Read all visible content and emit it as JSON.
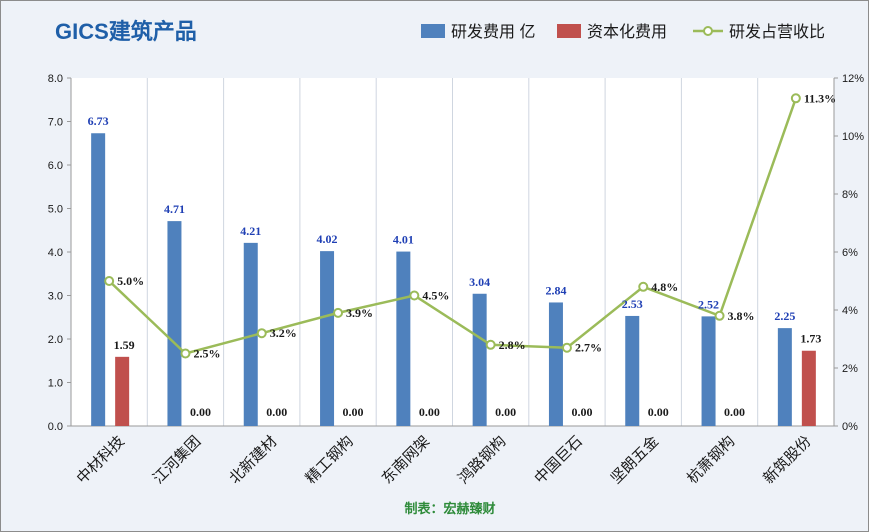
{
  "chart_data": {
    "type": "bar",
    "title": "GICS建筑产品",
    "credit": "制表：宏赫臻财",
    "categories": [
      "中材科技",
      "江河集团",
      "北新建材",
      "精工钢构",
      "东南网架",
      "鸿路钢构",
      "中国巨石",
      "坚朗五金",
      "杭萧钢构",
      "新筑股份"
    ],
    "series": [
      {
        "name": "研发费用 亿",
        "kind": "bar",
        "axis": "left",
        "color": "#4f81bd",
        "values": [
          6.73,
          4.71,
          4.21,
          4.02,
          4.01,
          3.04,
          2.84,
          2.53,
          2.52,
          2.25
        ],
        "labels": [
          "6.73",
          "4.71",
          "4.21",
          "4.02",
          "4.01",
          "3.04",
          "2.84",
          "2.53",
          "2.52",
          "2.25"
        ]
      },
      {
        "name": "资本化费用",
        "kind": "bar",
        "axis": "left",
        "color": "#c0504d",
        "values": [
          1.59,
          0,
          0,
          0,
          0,
          0,
          0,
          0,
          0,
          1.73
        ],
        "labels": [
          "1.59",
          "0.00",
          "0.00",
          "0.00",
          "0.00",
          "0.00",
          "0.00",
          "0.00",
          "0.00",
          "1.73"
        ]
      },
      {
        "name": "研发占营收比",
        "kind": "line",
        "axis": "right",
        "color": "#9bbb59",
        "values": [
          5.0,
          2.5,
          3.2,
          3.9,
          4.5,
          2.8,
          2.7,
          4.8,
          3.8,
          11.3
        ],
        "labels": [
          "5.0%",
          "2.5%",
          "3.2%",
          "3.9%",
          "4.5%",
          "2.8%",
          "2.7%",
          "4.8%",
          "3.8%",
          "11.3%"
        ]
      }
    ],
    "y_left": {
      "min": 0,
      "max": 8,
      "ticks": [
        "0.0",
        "1.0",
        "2.0",
        "3.0",
        "4.0",
        "5.0",
        "6.0",
        "7.0",
        "8.0"
      ]
    },
    "y_right": {
      "min": 0,
      "max": 12,
      "ticks": [
        "0%",
        "2%",
        "4%",
        "6%",
        "8%",
        "10%",
        "12%"
      ]
    },
    "grid": "vertical",
    "legend_position": "top-right",
    "colors": {
      "title": "#1f5fa8",
      "bar_label": "#1f3fb4",
      "credit": "#2e8b3a",
      "gridline": "#cfd6e0",
      "axis": "#9a9a9a"
    }
  }
}
